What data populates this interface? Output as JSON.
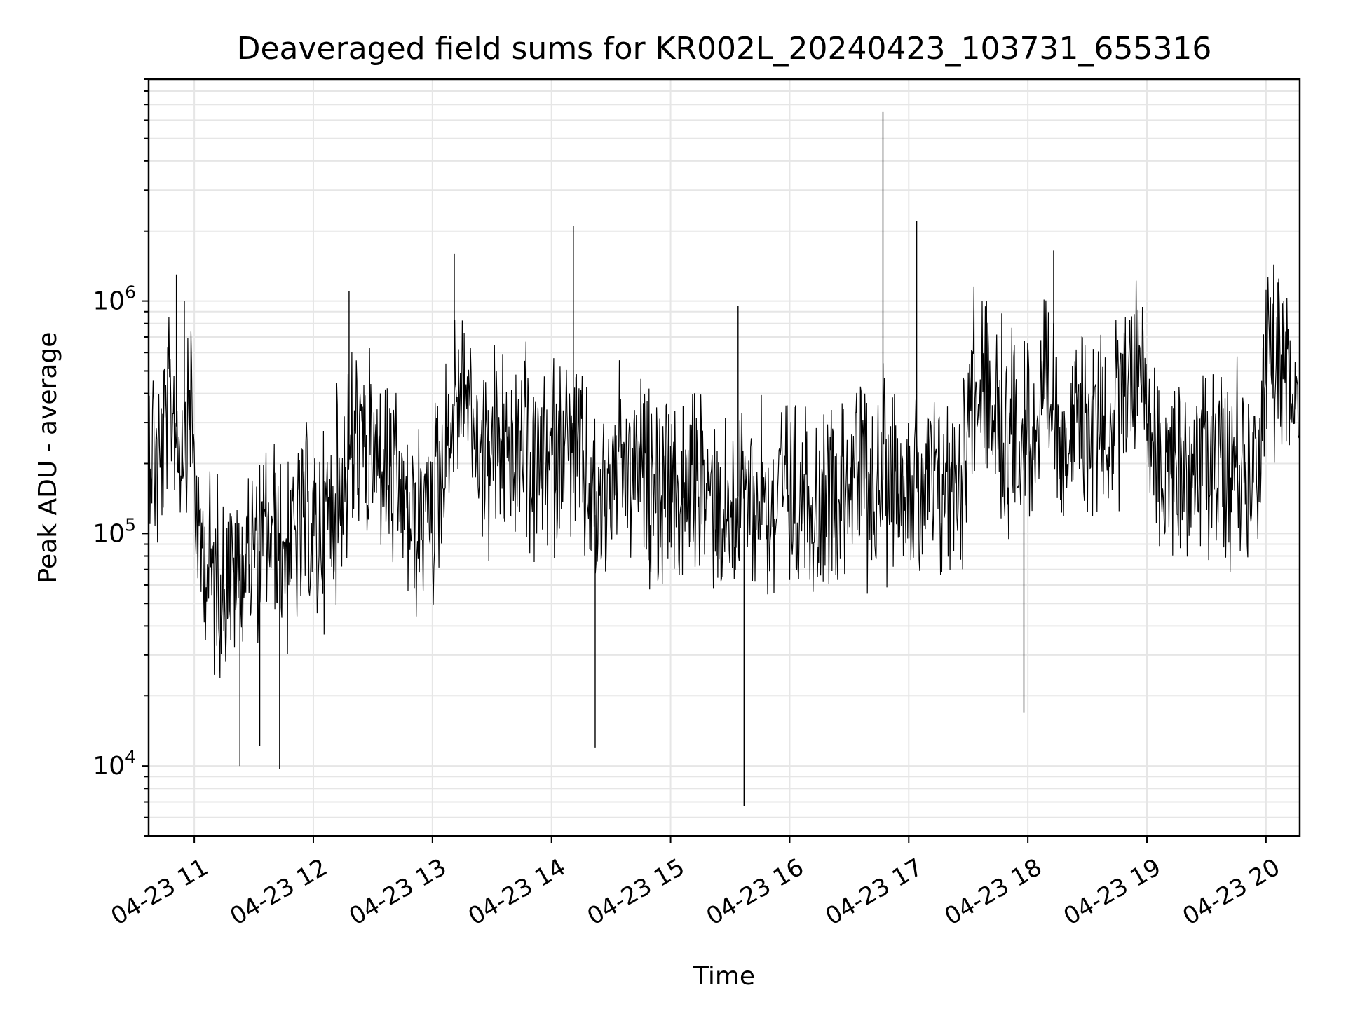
{
  "chart_data": {
    "type": "line",
    "title": "Deaveraged field sums for KR002L_20240423_103731_655316",
    "xlabel": "Time",
    "ylabel": "Peak ADU - average",
    "yscale": "log",
    "grid": true,
    "line_color": "#000000",
    "grid_color": "#e6e6e6",
    "xlim": [
      "2024-04-23 10:37",
      "2024-04-23 20:17"
    ],
    "ylim": [
      5000,
      9000000
    ],
    "x_ticks": [
      {
        "t": "2024-04-23 11:00",
        "label": "04-23 11"
      },
      {
        "t": "2024-04-23 12:00",
        "label": "04-23 12"
      },
      {
        "t": "2024-04-23 13:00",
        "label": "04-23 13"
      },
      {
        "t": "2024-04-23 14:00",
        "label": "04-23 14"
      },
      {
        "t": "2024-04-23 15:00",
        "label": "04-23 15"
      },
      {
        "t": "2024-04-23 16:00",
        "label": "04-23 16"
      },
      {
        "t": "2024-04-23 17:00",
        "label": "04-23 17"
      },
      {
        "t": "2024-04-23 18:00",
        "label": "04-23 18"
      },
      {
        "t": "2024-04-23 19:00",
        "label": "04-23 19"
      },
      {
        "t": "2024-04-23 20:00",
        "label": "04-23 20"
      }
    ],
    "y_ticks": [
      {
        "v": 10000,
        "base": "10",
        "exp": "4"
      },
      {
        "v": 100000,
        "base": "10",
        "exp": "5"
      },
      {
        "v": 1000000,
        "base": "10",
        "exp": "6"
      }
    ],
    "series": [
      {
        "points": [
          [
            "2024-04-23 10:37",
            280000
          ],
          [
            "2024-04-23 10:43",
            190000
          ],
          [
            "2024-04-23 10:48",
            380000
          ],
          [
            "2024-04-23 10:53",
            240000
          ],
          [
            "2024-04-23 10:58",
            420000
          ],
          [
            "2024-04-23 11:02",
            90000
          ],
          [
            "2024-04-23 11:07",
            75000
          ],
          [
            "2024-04-23 11:12",
            60000
          ],
          [
            "2024-04-23 11:17",
            70000
          ],
          [
            "2024-04-23 11:22",
            65000
          ],
          [
            "2024-04-23 11:27",
            90000
          ],
          [
            "2024-04-23 11:32",
            80000
          ],
          [
            "2024-04-23 11:37",
            100000
          ],
          [
            "2024-04-23 11:42",
            95000
          ],
          [
            "2024-04-23 11:47",
            85000
          ],
          [
            "2024-04-23 11:52",
            100000
          ],
          [
            "2024-04-23 11:57",
            110000
          ],
          [
            "2024-04-23 12:02",
            90000
          ],
          [
            "2024-04-23 12:07",
            120000
          ],
          [
            "2024-04-23 12:12",
            150000
          ],
          [
            "2024-04-23 12:17",
            200000
          ],
          [
            "2024-04-23 12:22",
            250000
          ],
          [
            "2024-04-23 12:27",
            220000
          ],
          [
            "2024-04-23 12:32",
            200000
          ],
          [
            "2024-04-23 12:37",
            180000
          ],
          [
            "2024-04-23 12:42",
            150000
          ],
          [
            "2024-04-23 12:47",
            120000
          ],
          [
            "2024-04-23 12:52",
            110000
          ],
          [
            "2024-04-23 12:57",
            130000
          ],
          [
            "2024-04-23 13:02",
            150000
          ],
          [
            "2024-04-23 13:07",
            220000
          ],
          [
            "2024-04-23 13:12",
            400000
          ],
          [
            "2024-04-23 13:17",
            450000
          ],
          [
            "2024-04-23 13:22",
            250000
          ],
          [
            "2024-04-23 13:27",
            200000
          ],
          [
            "2024-04-23 13:32",
            250000
          ],
          [
            "2024-04-23 13:37",
            220000
          ],
          [
            "2024-04-23 13:42",
            200000
          ],
          [
            "2024-04-23 13:47",
            230000
          ],
          [
            "2024-04-23 13:52",
            180000
          ],
          [
            "2024-04-23 13:57",
            200000
          ],
          [
            "2024-04-23 14:02",
            220000
          ],
          [
            "2024-04-23 14:07",
            250000
          ],
          [
            "2024-04-23 14:12",
            200000
          ],
          [
            "2024-04-23 14:17",
            180000
          ],
          [
            "2024-04-23 14:22",
            120000
          ],
          [
            "2024-04-23 14:27",
            160000
          ],
          [
            "2024-04-23 14:32",
            180000
          ],
          [
            "2024-04-23 14:37",
            170000
          ],
          [
            "2024-04-23 14:42",
            200000
          ],
          [
            "2024-04-23 14:47",
            150000
          ],
          [
            "2024-04-23 14:52",
            170000
          ],
          [
            "2024-04-23 14:57",
            160000
          ],
          [
            "2024-04-23 15:02",
            150000
          ],
          [
            "2024-04-23 15:07",
            140000
          ],
          [
            "2024-04-23 15:12",
            170000
          ],
          [
            "2024-04-23 15:17",
            150000
          ],
          [
            "2024-04-23 15:22",
            160000
          ],
          [
            "2024-04-23 15:27",
            120000
          ],
          [
            "2024-04-23 15:32",
            140000
          ],
          [
            "2024-04-23 15:37",
            150000
          ],
          [
            "2024-04-23 15:42",
            130000
          ],
          [
            "2024-04-23 15:47",
            160000
          ],
          [
            "2024-04-23 15:52",
            120000
          ],
          [
            "2024-04-23 15:57",
            150000
          ],
          [
            "2024-04-23 16:02",
            130000
          ],
          [
            "2024-04-23 16:07",
            160000
          ],
          [
            "2024-04-23 16:12",
            150000
          ],
          [
            "2024-04-23 16:17",
            140000
          ],
          [
            "2024-04-23 16:22",
            170000
          ],
          [
            "2024-04-23 16:27",
            160000
          ],
          [
            "2024-04-23 16:32",
            180000
          ],
          [
            "2024-04-23 16:37",
            160000
          ],
          [
            "2024-04-23 16:42",
            150000
          ],
          [
            "2024-04-23 16:47",
            170000
          ],
          [
            "2024-04-23 16:52",
            200000
          ],
          [
            "2024-04-23 16:57",
            180000
          ],
          [
            "2024-04-23 17:02",
            160000
          ],
          [
            "2024-04-23 17:07",
            150000
          ],
          [
            "2024-04-23 17:12",
            140000
          ],
          [
            "2024-04-23 17:17",
            160000
          ],
          [
            "2024-04-23 17:22",
            170000
          ],
          [
            "2024-04-23 17:27",
            200000
          ],
          [
            "2024-04-23 17:32",
            500000
          ],
          [
            "2024-04-23 17:37",
            400000
          ],
          [
            "2024-04-23 17:42",
            300000
          ],
          [
            "2024-04-23 17:47",
            280000
          ],
          [
            "2024-04-23 17:52",
            250000
          ],
          [
            "2024-04-23 17:57",
            300000
          ],
          [
            "2024-04-23 18:02",
            280000
          ],
          [
            "2024-04-23 18:07",
            320000
          ],
          [
            "2024-04-23 18:12",
            350000
          ],
          [
            "2024-04-23 18:17",
            300000
          ],
          [
            "2024-04-23 18:22",
            250000
          ],
          [
            "2024-04-23 18:27",
            300000
          ],
          [
            "2024-04-23 18:32",
            270000
          ],
          [
            "2024-04-23 18:37",
            350000
          ],
          [
            "2024-04-23 18:42",
            250000
          ],
          [
            "2024-04-23 18:47",
            400000
          ],
          [
            "2024-04-23 18:52",
            450000
          ],
          [
            "2024-04-23 18:57",
            700000
          ],
          [
            "2024-04-23 19:02",
            220000
          ],
          [
            "2024-04-23 19:07",
            210000
          ],
          [
            "2024-04-23 19:12",
            200000
          ],
          [
            "2024-04-23 19:17",
            190000
          ],
          [
            "2024-04-23 19:22",
            210000
          ],
          [
            "2024-04-23 19:27",
            200000
          ],
          [
            "2024-04-23 19:32",
            220000
          ],
          [
            "2024-04-23 19:37",
            200000
          ],
          [
            "2024-04-23 19:42",
            190000
          ],
          [
            "2024-04-23 19:47",
            210000
          ],
          [
            "2024-04-23 19:52",
            200000
          ],
          [
            "2024-04-23 19:57",
            200000
          ],
          [
            "2024-04-23 20:02",
            700000
          ],
          [
            "2024-04-23 20:07",
            500000
          ],
          [
            "2024-04-23 20:12",
            450000
          ],
          [
            "2024-04-23 20:17",
            380000
          ]
        ],
        "spikes": [
          [
            "2024-04-23 10:51",
            1300000
          ],
          [
            "2024-04-23 10:55",
            1000000
          ],
          [
            "2024-04-23 12:18",
            1100000
          ],
          [
            "2024-04-23 13:11",
            1600000
          ],
          [
            "2024-04-23 14:11",
            2100000
          ],
          [
            "2024-04-23 15:34",
            950000
          ],
          [
            "2024-04-23 16:47",
            6500000
          ],
          [
            "2024-04-23 17:04",
            2200000
          ],
          [
            "2024-04-23 18:13",
            1650000
          ],
          [
            "2024-04-23 20:06",
            1200000
          ]
        ],
        "dips": [
          [
            "2024-04-23 11:23",
            10000
          ],
          [
            "2024-04-23 11:43",
            9700
          ],
          [
            "2024-04-23 14:22",
            12000
          ],
          [
            "2024-04-23 15:37",
            6700
          ],
          [
            "2024-04-23 17:58",
            17000
          ],
          [
            "2024-04-23 11:33",
            12200
          ]
        ]
      }
    ]
  }
}
